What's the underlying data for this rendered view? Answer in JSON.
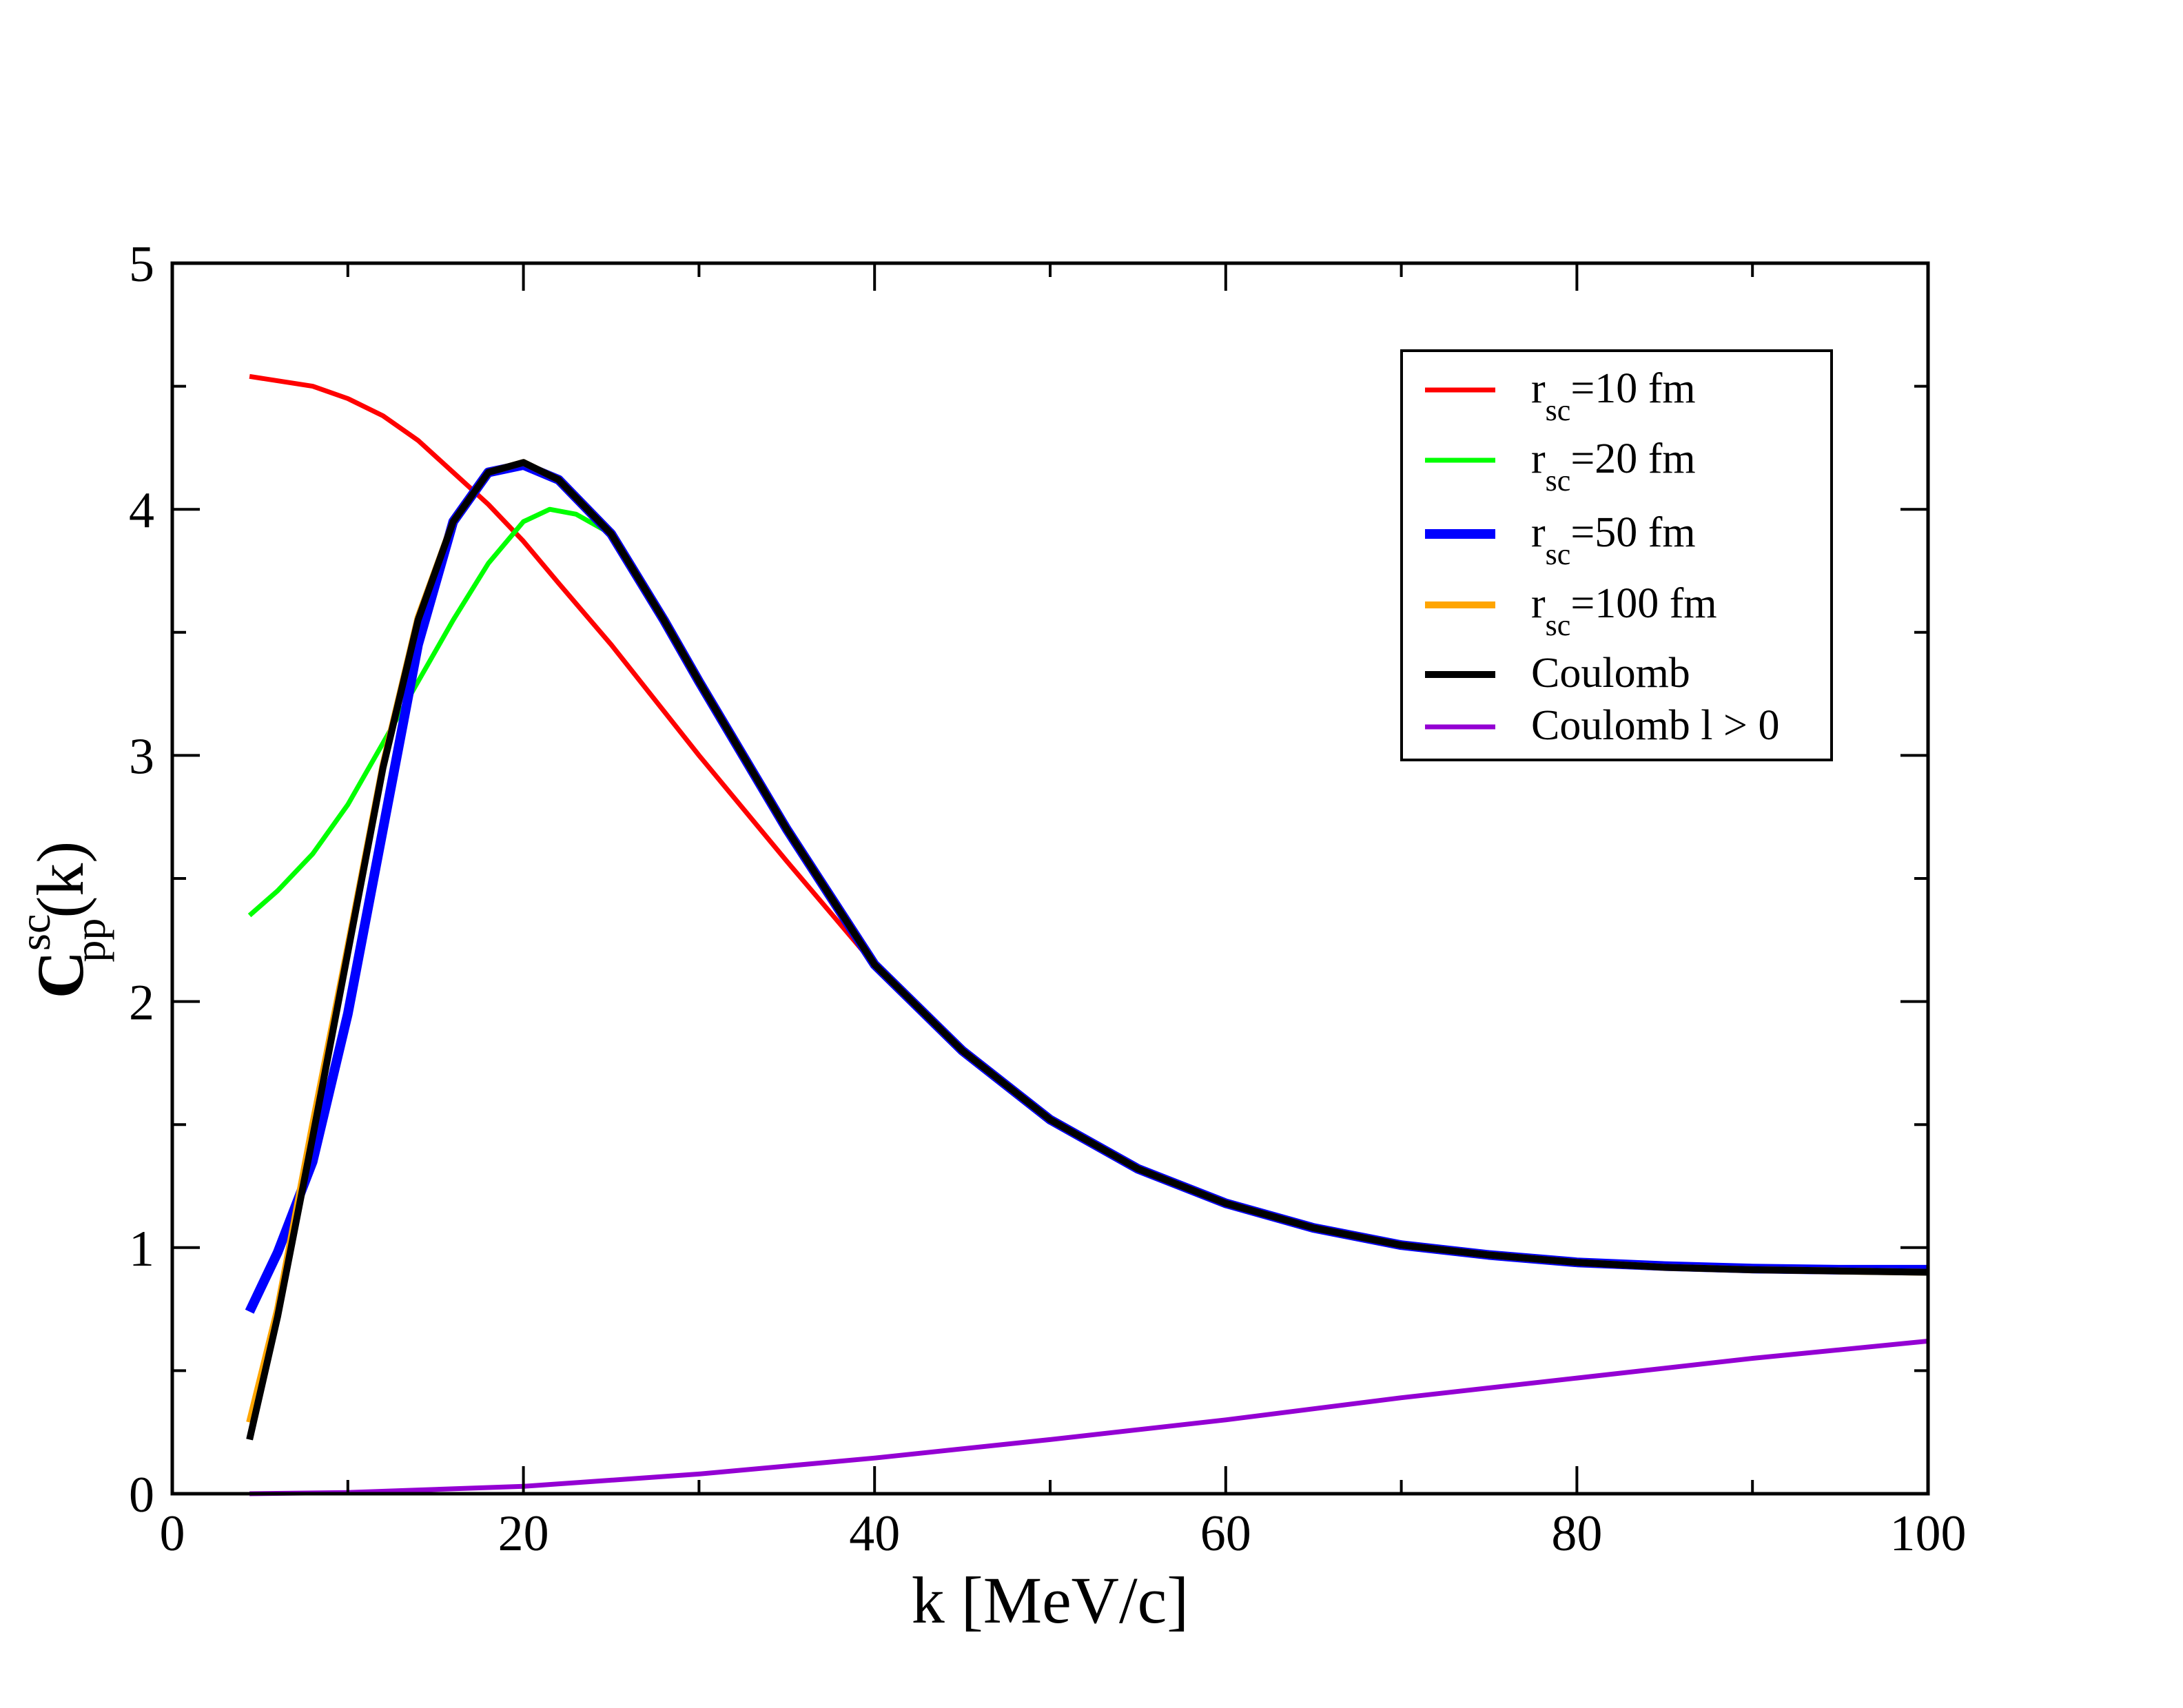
{
  "chart_data": {
    "type": "line",
    "title": "",
    "xlabel": "k [MeV/c]",
    "ylabel": {
      "main": "C",
      "sup": "sc",
      "sub": "pp",
      "tail": "(k)"
    },
    "xlim": [
      0,
      100
    ],
    "ylim": [
      0,
      5
    ],
    "x_ticks": [
      0,
      20,
      40,
      60,
      80,
      100
    ],
    "y_ticks": [
      0,
      1,
      2,
      3,
      4,
      5
    ],
    "x_minor_step": 10,
    "y_minor_step": 0.5,
    "grid": false,
    "legend_position": "top-right",
    "series": [
      {
        "name": "r_sc=10 fm",
        "label_main": "r",
        "label_sub": "sc",
        "label_tail": "=10 fm",
        "color": "#ff0000",
        "width": "normal",
        "x": [
          4.4,
          8,
          10,
          12,
          14,
          16,
          18,
          20,
          22,
          25,
          28,
          30,
          35,
          40,
          45,
          50,
          55,
          60,
          65,
          70,
          75,
          80,
          85,
          90,
          95,
          100
        ],
        "y": [
          4.54,
          4.5,
          4.45,
          4.38,
          4.28,
          4.15,
          4.02,
          3.87,
          3.7,
          3.45,
          3.18,
          3.0,
          2.57,
          2.15,
          1.8,
          1.52,
          1.32,
          1.18,
          1.08,
          1.01,
          0.97,
          0.94,
          0.92,
          0.91,
          0.905,
          0.9
        ]
      },
      {
        "name": "r_sc=20 fm",
        "label_main": "r",
        "label_sub": "sc",
        "label_tail": "=20 fm",
        "color": "#00ff00",
        "width": "normal",
        "x": [
          4.4,
          6,
          8,
          10,
          12,
          14,
          16,
          18,
          20,
          21.5,
          23,
          25,
          28,
          30,
          35,
          40,
          45,
          50,
          55,
          60,
          65,
          70,
          75,
          80,
          85,
          90,
          95,
          100
        ],
        "y": [
          2.35,
          2.45,
          2.6,
          2.8,
          3.05,
          3.3,
          3.55,
          3.78,
          3.95,
          4.0,
          3.98,
          3.9,
          3.56,
          3.31,
          2.71,
          2.16,
          1.8,
          1.52,
          1.32,
          1.18,
          1.08,
          1.01,
          0.97,
          0.94,
          0.92,
          0.91,
          0.905,
          0.9
        ]
      },
      {
        "name": "r_sc=50 fm",
        "label_main": "r",
        "label_sub": "sc",
        "label_tail": "=50 fm",
        "color": "#0000ff",
        "width": "thick",
        "x": [
          4.4,
          6,
          8,
          10,
          12,
          14,
          16,
          18,
          20,
          22,
          25,
          28,
          30,
          35,
          40,
          45,
          50,
          55,
          60,
          65,
          70,
          75,
          80,
          85,
          90,
          95,
          100
        ],
        "y": [
          0.74,
          0.98,
          1.35,
          1.95,
          2.7,
          3.45,
          3.95,
          4.15,
          4.18,
          4.12,
          3.9,
          3.55,
          3.3,
          2.7,
          2.15,
          1.8,
          1.52,
          1.32,
          1.18,
          1.08,
          1.01,
          0.97,
          0.94,
          0.925,
          0.915,
          0.91,
          0.91
        ]
      },
      {
        "name": "r_sc=100 fm",
        "label_main": "r",
        "label_sub": "sc",
        "label_tail": "=100 fm",
        "color": "#ffa500",
        "width": "medium",
        "x": [
          4.4,
          6,
          8,
          10,
          12,
          14,
          16,
          18,
          20,
          22,
          25,
          28,
          30,
          35,
          40,
          45,
          50,
          55,
          60,
          65,
          70,
          75,
          80,
          85,
          90,
          95,
          100
        ],
        "y": [
          0.29,
          0.75,
          1.5,
          2.22,
          2.96,
          3.56,
          3.95,
          4.15,
          4.19,
          4.12,
          3.9,
          3.55,
          3.3,
          2.7,
          2.15,
          1.8,
          1.52,
          1.32,
          1.18,
          1.08,
          1.01,
          0.97,
          0.94,
          0.92,
          0.91,
          0.905,
          0.9
        ]
      },
      {
        "name": "Coulomb",
        "label_main": "Coulomb",
        "label_sub": "",
        "label_tail": "",
        "color": "#000000",
        "width": "medium",
        "x": [
          4.4,
          6,
          8,
          10,
          12,
          14,
          16,
          18,
          20,
          22,
          25,
          28,
          30,
          35,
          40,
          45,
          50,
          55,
          60,
          65,
          70,
          75,
          80,
          85,
          90,
          95,
          100
        ],
        "y": [
          0.22,
          0.72,
          1.45,
          2.2,
          2.95,
          3.55,
          3.95,
          4.15,
          4.19,
          4.12,
          3.9,
          3.55,
          3.3,
          2.7,
          2.15,
          1.8,
          1.52,
          1.32,
          1.18,
          1.08,
          1.01,
          0.97,
          0.94,
          0.92,
          0.91,
          0.905,
          0.9
        ]
      },
      {
        "name": "Coulomb l > 0",
        "label_main": "Coulomb l > 0",
        "label_sub": "",
        "label_tail": "",
        "color": "#9400d3",
        "width": "normal",
        "x": [
          4.4,
          10,
          20,
          30,
          40,
          50,
          60,
          70,
          80,
          90,
          100
        ],
        "y": [
          0.0,
          0.005,
          0.03,
          0.08,
          0.145,
          0.22,
          0.3,
          0.39,
          0.47,
          0.55,
          0.62
        ]
      }
    ]
  }
}
